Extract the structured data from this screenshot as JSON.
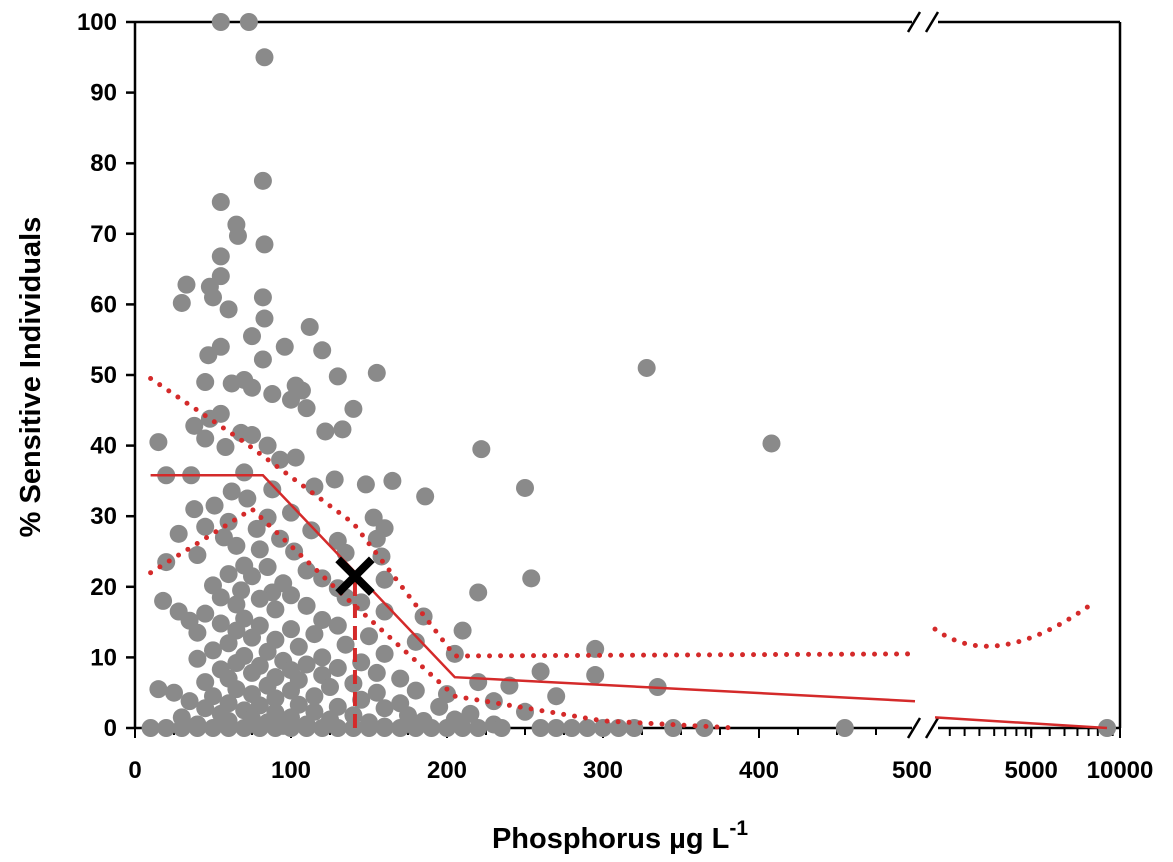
{
  "chart_data": {
    "type": "scatter",
    "title": "",
    "xlabel": {
      "base": "Phosphorus µg L",
      "superscript": "-1"
    },
    "ylabel": "% Sensitive Individuals",
    "ylim": [
      0,
      100
    ],
    "y_ticks": [
      0,
      10,
      20,
      30,
      40,
      50,
      60,
      70,
      80,
      90,
      100
    ],
    "x_axis": {
      "broken": true,
      "segment_1": {
        "range": [
          0,
          500
        ],
        "ticks": [
          "0",
          "100",
          "200",
          "300",
          "400",
          "500"
        ]
      },
      "segment_2": {
        "ticks": [
          "5000",
          "10000"
        ],
        "scale": "log"
      }
    },
    "grid": false,
    "legend": "none",
    "colors": {
      "points": "#8a8a8a",
      "fit": "#d42a2a",
      "marker": "#000000"
    },
    "series": [
      {
        "style": "points",
        "points": [
          [
            55,
            100
          ],
          [
            73,
            100
          ],
          [
            83,
            95
          ],
          [
            82,
            77.5
          ],
          [
            55,
            74.5
          ],
          [
            65,
            71.3
          ],
          [
            66,
            69.7
          ],
          [
            83,
            68.5
          ],
          [
            55,
            66.8
          ],
          [
            55,
            64
          ],
          [
            48,
            62.5
          ],
          [
            82,
            61
          ],
          [
            33,
            62.8
          ],
          [
            50,
            61
          ],
          [
            30,
            60.2
          ],
          [
            60,
            59.3
          ],
          [
            83,
            58
          ],
          [
            112,
            56.8
          ],
          [
            75,
            55.5
          ],
          [
            55,
            54
          ],
          [
            96,
            54
          ],
          [
            120,
            53.5
          ],
          [
            47,
            52.8
          ],
          [
            82,
            52.2
          ],
          [
            155,
            50.3
          ],
          [
            130,
            49.8
          ],
          [
            70,
            49.3
          ],
          [
            45,
            49
          ],
          [
            62,
            48.8
          ],
          [
            75,
            48.2
          ],
          [
            103,
            48.5
          ],
          [
            107,
            47.8
          ],
          [
            88,
            47.3
          ],
          [
            100,
            46.5
          ],
          [
            110,
            45.3
          ],
          [
            140,
            45.2
          ],
          [
            55,
            44.5
          ],
          [
            48,
            43.8
          ],
          [
            38,
            42.8
          ],
          [
            122,
            42
          ],
          [
            133,
            42.3
          ],
          [
            68,
            41.8
          ],
          [
            75,
            41.5
          ],
          [
            15,
            40.5
          ],
          [
            45,
            41
          ],
          [
            58,
            39.8
          ],
          [
            85,
            40
          ],
          [
            222,
            39.5
          ],
          [
            93,
            38
          ],
          [
            103,
            38.3
          ],
          [
            36,
            35.8
          ],
          [
            70,
            36.2
          ],
          [
            128,
            35.2
          ],
          [
            20,
            35.8
          ],
          [
            165,
            35
          ],
          [
            148,
            34.5
          ],
          [
            115,
            34.2
          ],
          [
            250,
            34
          ],
          [
            88,
            33.8
          ],
          [
            62,
            33.5
          ],
          [
            186,
            32.8
          ],
          [
            72,
            32.5
          ],
          [
            51,
            31.5
          ],
          [
            38,
            31
          ],
          [
            100,
            30.5
          ],
          [
            85,
            29.8
          ],
          [
            60,
            29.2
          ],
          [
            153,
            29.8
          ],
          [
            45,
            28.5
          ],
          [
            78,
            28.2
          ],
          [
            113,
            28
          ],
          [
            160,
            28.3
          ],
          [
            28,
            27.5
          ],
          [
            57,
            27
          ],
          [
            93,
            26.8
          ],
          [
            130,
            26.5
          ],
          [
            155,
            26.8
          ],
          [
            65,
            25.8
          ],
          [
            80,
            25.3
          ],
          [
            102,
            25
          ],
          [
            40,
            24.5
          ],
          [
            135,
            24.8
          ],
          [
            158,
            24.3
          ],
          [
            20,
            23.5
          ],
          [
            70,
            23
          ],
          [
            85,
            22.8
          ],
          [
            110,
            22.3
          ],
          [
            60,
            21.8
          ],
          [
            75,
            21.5
          ],
          [
            120,
            21.2
          ],
          [
            160,
            21
          ],
          [
            95,
            20.5
          ],
          [
            50,
            20.2
          ],
          [
            130,
            19.8
          ],
          [
            254,
            21.2
          ],
          [
            68,
            19.5
          ],
          [
            88,
            19.2
          ],
          [
            220,
            19.2
          ],
          [
            100,
            18.8
          ],
          [
            55,
            18.5
          ],
          [
            80,
            18.3
          ],
          [
            135,
            18.5
          ],
          [
            18,
            18
          ],
          [
            65,
            17.5
          ],
          [
            145,
            17.8
          ],
          [
            110,
            17.3
          ],
          [
            90,
            16.8
          ],
          [
            28,
            16.5
          ],
          [
            45,
            16.2
          ],
          [
            160,
            16.5
          ],
          [
            185,
            15.8
          ],
          [
            70,
            15.5
          ],
          [
            120,
            15.3
          ],
          [
            35,
            15.2
          ],
          [
            55,
            14.8
          ],
          [
            80,
            14.5
          ],
          [
            130,
            14.5
          ],
          [
            100,
            14
          ],
          [
            65,
            13.8
          ],
          [
            210,
            13.8
          ],
          [
            40,
            13.5
          ],
          [
            115,
            13.3
          ],
          [
            150,
            13
          ],
          [
            75,
            12.8
          ],
          [
            90,
            12.5
          ],
          [
            180,
            12.2
          ],
          [
            60,
            12
          ],
          [
            135,
            11.8
          ],
          [
            105,
            11.5
          ],
          [
            295,
            11.2
          ],
          [
            50,
            11
          ],
          [
            85,
            10.8
          ],
          [
            160,
            10.5
          ],
          [
            205,
            10.5
          ],
          [
            70,
            10.2
          ],
          [
            120,
            10
          ],
          [
            40,
            9.8
          ],
          [
            95,
            9.5
          ],
          [
            65,
            9.2
          ],
          [
            145,
            9.3
          ],
          [
            110,
            9
          ],
          [
            80,
            8.8
          ],
          [
            130,
            8.5
          ],
          [
            260,
            8
          ],
          [
            55,
            8.3
          ],
          [
            100,
            8.2
          ],
          [
            155,
            7.8
          ],
          [
            75,
            7.8
          ],
          [
            120,
            7.5
          ],
          [
            90,
            7.2
          ],
          [
            295,
            7.5
          ],
          [
            60,
            7
          ],
          [
            170,
            7
          ],
          [
            105,
            6.8
          ],
          [
            220,
            6.5
          ],
          [
            45,
            6.5
          ],
          [
            140,
            6.3
          ],
          [
            240,
            6
          ],
          [
            85,
            6
          ],
          [
            335,
            5.8
          ],
          [
            125,
            5.8
          ],
          [
            15,
            5.5
          ],
          [
            65,
            5.5
          ],
          [
            180,
            5.3
          ],
          [
            100,
            5.3
          ],
          [
            25,
            5
          ],
          [
            155,
            5
          ],
          [
            75,
            4.8
          ],
          [
            200,
            4.8
          ],
          [
            50,
            4.5
          ],
          [
            115,
            4.5
          ],
          [
            270,
            4.5
          ],
          [
            90,
            4.2
          ],
          [
            145,
            4
          ],
          [
            230,
            3.8
          ],
          [
            35,
            3.8
          ],
          [
            170,
            3.5
          ],
          [
            60,
            3.5
          ],
          [
            105,
            3.3
          ],
          [
            80,
            3.2
          ],
          [
            130,
            3
          ],
          [
            195,
            3
          ],
          [
            45,
            2.8
          ],
          [
            160,
            2.8
          ],
          [
            70,
            2.5
          ],
          [
            115,
            2.3
          ],
          [
            250,
            2.3
          ],
          [
            90,
            2.2
          ],
          [
            215,
            2
          ],
          [
            55,
            2
          ],
          [
            140,
            1.8
          ],
          [
            175,
            1.8
          ],
          [
            100,
            1.5
          ],
          [
            30,
            1.5
          ],
          [
            75,
            1.3
          ],
          [
            125,
            1.2
          ],
          [
            205,
            1.2
          ],
          [
            185,
            1
          ],
          [
            60,
            1
          ],
          [
            150,
            0.8
          ],
          [
            85,
            0.8
          ],
          [
            110,
            0.5
          ],
          [
            40,
            0.5
          ],
          [
            230,
            0.5
          ],
          [
            95,
            0.3
          ],
          [
            160,
            0.2
          ],
          [
            10,
            0
          ],
          [
            20,
            0
          ],
          [
            30,
            0
          ],
          [
            40,
            0
          ],
          [
            50,
            0
          ],
          [
            60,
            0
          ],
          [
            70,
            0
          ],
          [
            80,
            0
          ],
          [
            90,
            0
          ],
          [
            100,
            0
          ],
          [
            110,
            0
          ],
          [
            120,
            0
          ],
          [
            130,
            0
          ],
          [
            140,
            0
          ],
          [
            150,
            0
          ],
          [
            160,
            0
          ],
          [
            170,
            0
          ],
          [
            180,
            0
          ],
          [
            190,
            0
          ],
          [
            200,
            0
          ],
          [
            210,
            0
          ],
          [
            220,
            0
          ],
          [
            235,
            0
          ],
          [
            260,
            0
          ],
          [
            270,
            0
          ],
          [
            280,
            0
          ],
          [
            290,
            0
          ],
          [
            300,
            0
          ],
          [
            310,
            0
          ],
          [
            320,
            0
          ],
          [
            345,
            0
          ],
          [
            365,
            0
          ],
          [
            455,
            0
          ],
          [
            328,
            51
          ],
          [
            408,
            40.3
          ]
        ],
        "points_right_segment_x_fraction": [
          [
            0.93,
            0
          ]
        ]
      },
      {
        "style": "fit-line",
        "points": [
          [
            10,
            35.8
          ],
          [
            82,
            35.8
          ],
          [
            205,
            7.2
          ],
          [
            500,
            3.8
          ]
        ],
        "right_segment": [
          [
            0,
            1.5
          ],
          [
            0.93,
            0
          ]
        ]
      },
      {
        "style": "confidence-upper",
        "points": [
          [
            10,
            49.5
          ],
          [
            70,
            40.5
          ],
          [
            140,
            29
          ],
          [
            205,
            10.2
          ],
          [
            500,
            10.5
          ]
        ],
        "right_segment": [
          [
            0,
            14
          ],
          [
            0.38,
            11.8
          ],
          [
            0.86,
            17.8
          ]
        ]
      },
      {
        "style": "confidence-lower",
        "points": [
          [
            10,
            22
          ],
          [
            75,
            31
          ],
          [
            130,
            19.5
          ],
          [
            205,
            4.5
          ],
          [
            300,
            1
          ],
          [
            385,
            0
          ]
        ]
      }
    ],
    "annotations": [
      {
        "type": "x-marker",
        "x": 141,
        "y": 21.5
      },
      {
        "type": "dashed-vline",
        "x": 141,
        "from_y": 0,
        "to_y": 21.5
      }
    ]
  }
}
